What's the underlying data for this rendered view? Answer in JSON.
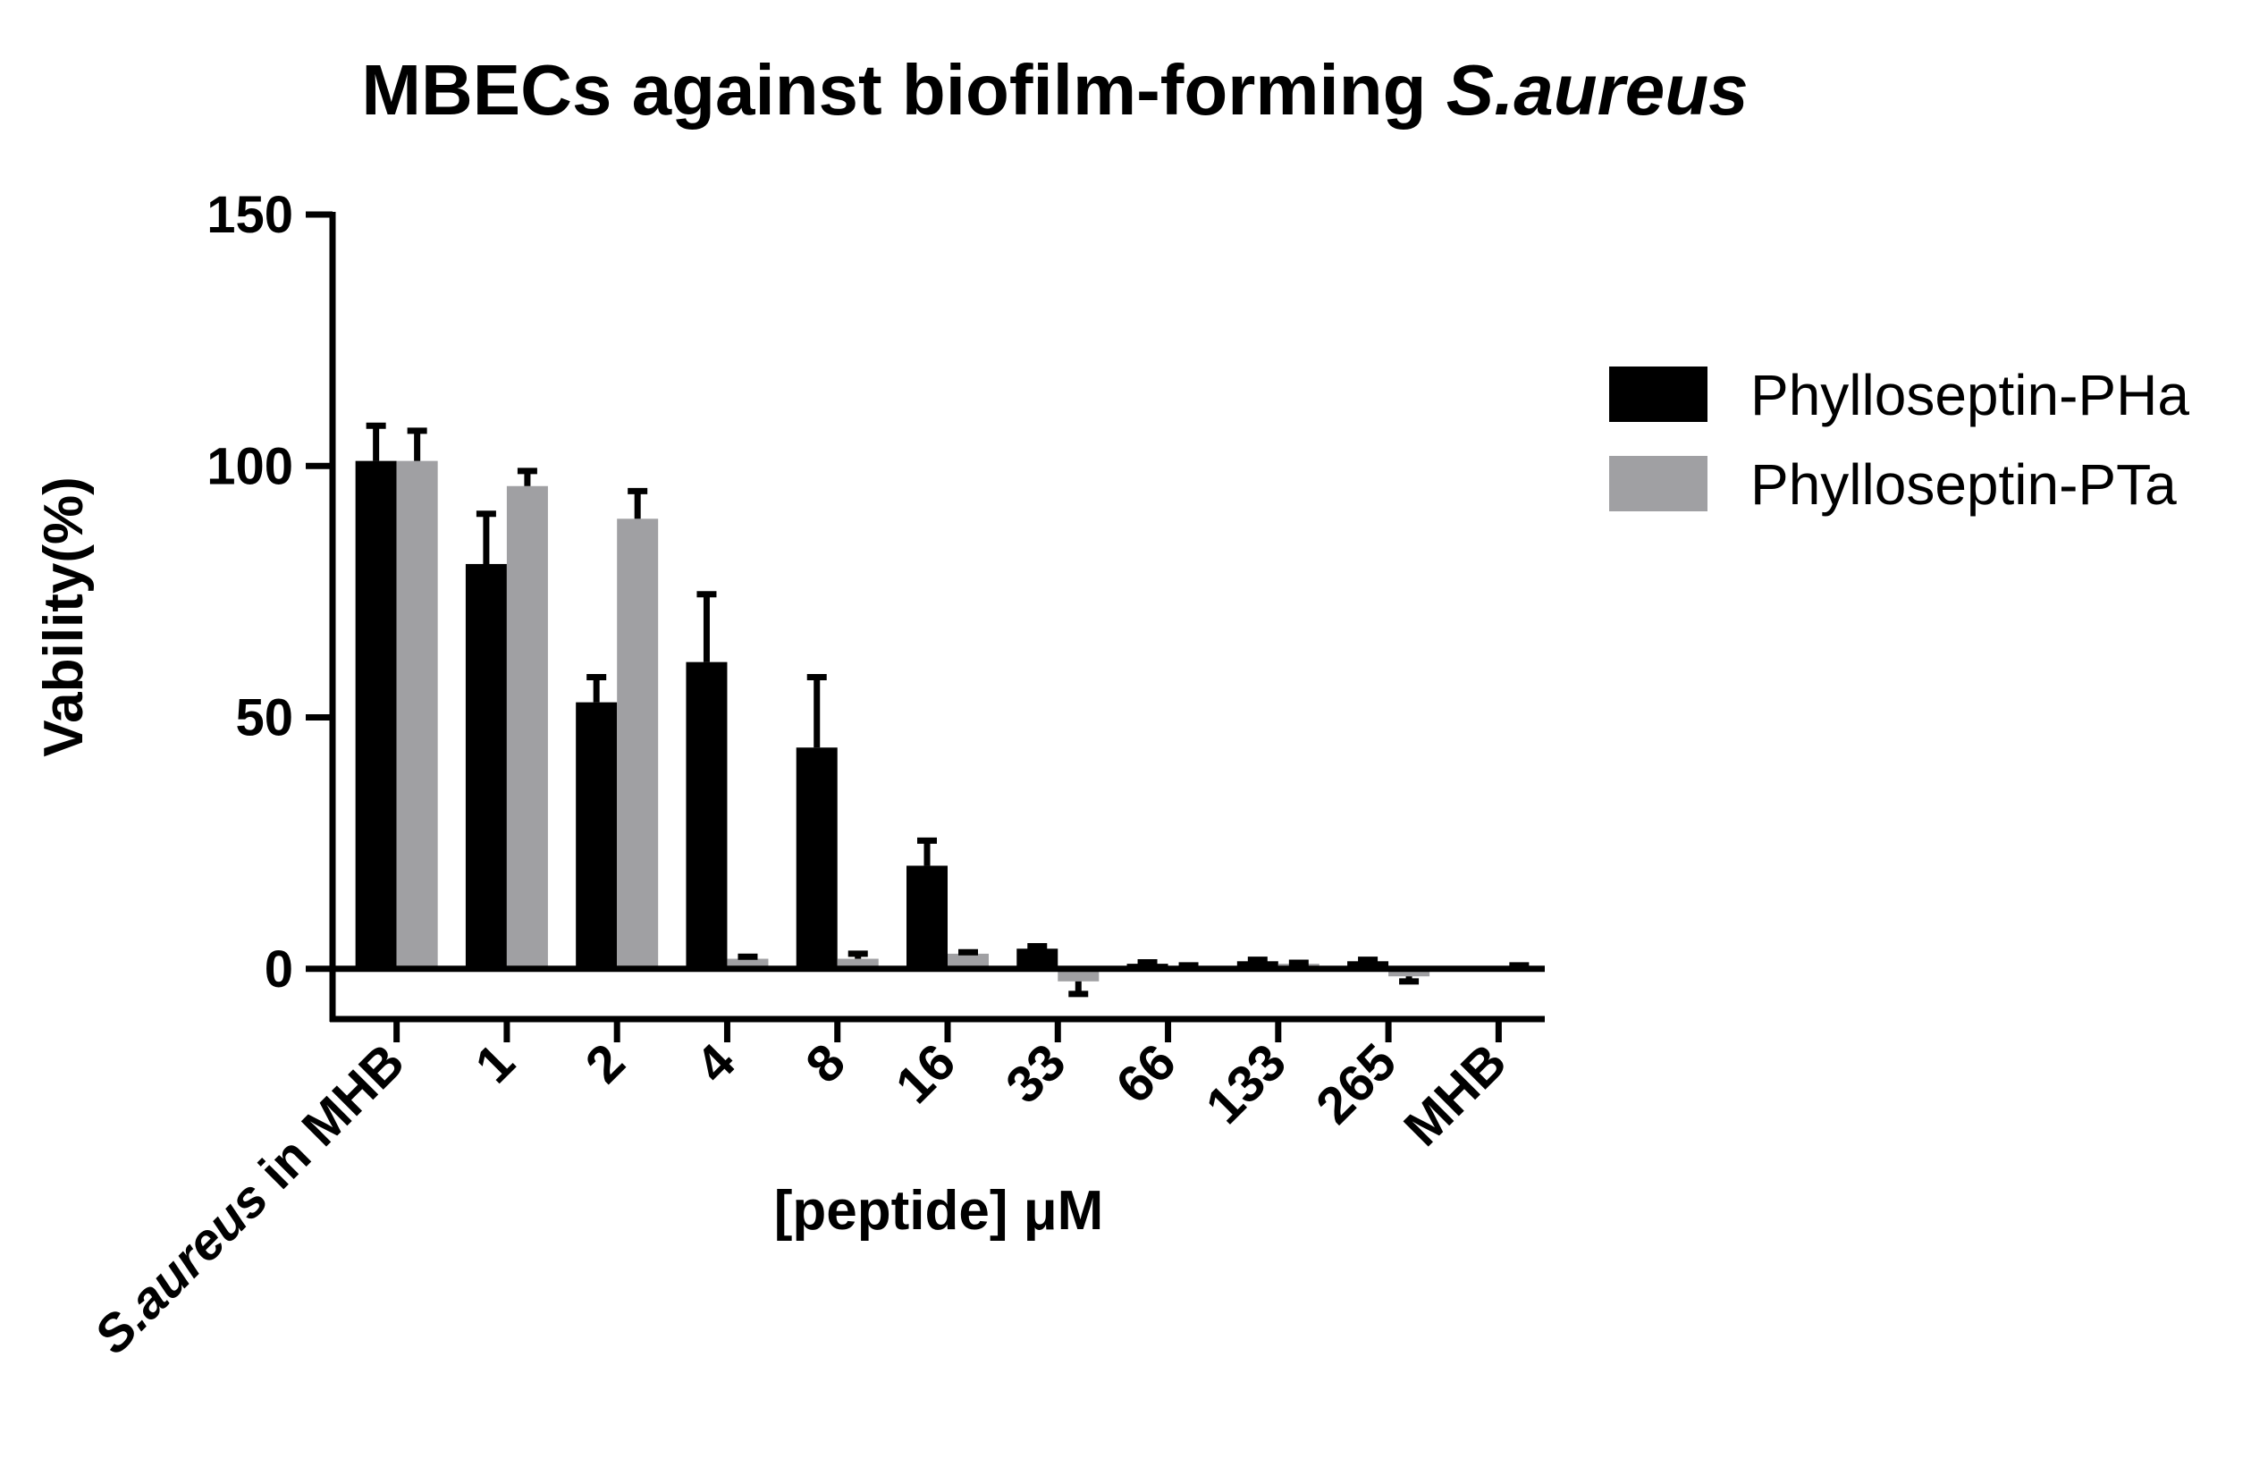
{
  "chart_data": {
    "type": "bar",
    "title_prefix": "MBECs against biofilm-forming ",
    "title_italic": "S.aureus",
    "xlabel": "[peptide] μM",
    "ylabel": "Vability(%)",
    "ylim": [
      -10,
      150
    ],
    "yticks": [
      0,
      50,
      100,
      150
    ],
    "grid": false,
    "legend_position": "right",
    "categories": [
      "S.aureus in MHB",
      "1",
      "2",
      "4",
      "8",
      "16",
      "33",
      "66",
      "133",
      "265",
      "MHB"
    ],
    "first_category_italic": "S.aureus",
    "first_category_rest": " in MHB",
    "series": [
      {
        "name": "Phylloseptin-PHa",
        "color": "#000000",
        "values": [
          101,
          80.5,
          53,
          61,
          44,
          20.5,
          4,
          1,
          1.5,
          1.5,
          0
        ],
        "errors": [
          7,
          10,
          5,
          13.5,
          14,
          5,
          0.5,
          0.3,
          0.3,
          0.3,
          0
        ]
      },
      {
        "name": "Phylloseptin-PTa",
        "color": "#a0a0a3",
        "values": [
          101,
          96,
          89.5,
          2,
          2,
          3,
          -2.5,
          0.5,
          1,
          -1.5,
          0.5
        ],
        "errors": [
          6,
          3,
          5.5,
          0.4,
          1,
          0.3,
          2.5,
          0.2,
          0.2,
          1,
          0.2
        ]
      }
    ]
  }
}
